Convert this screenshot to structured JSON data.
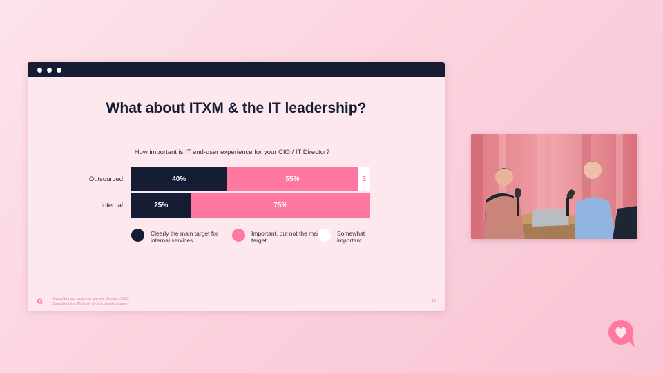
{
  "slide": {
    "title": "What about ITXM & the IT leadership?",
    "footer_source": "HappySignals customer survey, January 2022",
    "footer_question_type": "Question type: Multiple choice, single answer",
    "page_number": "12"
  },
  "chart_data": {
    "type": "bar",
    "orientation": "horizontal",
    "stacked": true,
    "normalized": true,
    "title": "How important is IT end-user experience for your CIO / IT Director?",
    "categories": [
      "Outsourced",
      "Internal"
    ],
    "series": [
      {
        "name": "Clearly the main target for internal services",
        "values": [
          40,
          25
        ],
        "labels": [
          "40%",
          "25%"
        ],
        "color": "#141d33",
        "label_color": "#ffffff"
      },
      {
        "name": "Important, but not the main target",
        "values": [
          55,
          75
        ],
        "labels": [
          "55%",
          "75%"
        ],
        "color": "#ff78a0",
        "label_color": "#ffffff"
      },
      {
        "name": "Somewhat important",
        "values": [
          5,
          0
        ],
        "labels": [
          "5",
          ""
        ],
        "color": "#ffffff",
        "label_color": "#ff78a0"
      }
    ],
    "legend_position": "bottom",
    "grid": false
  },
  "colors": {
    "titlebar": "#141d33",
    "slide_bg": "#fde8ee",
    "accent_pink": "#ff78a0",
    "navy": "#141d33"
  },
  "icons": {
    "window_controls": "three-dots",
    "brand": "heart-speech-bubble-logo"
  }
}
